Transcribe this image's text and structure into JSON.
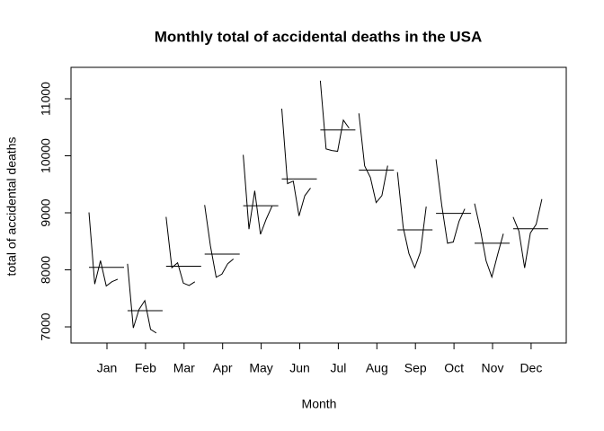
{
  "chart_data": {
    "type": "monthplot",
    "title": "Monthly total of accidental deaths in the USA",
    "xlabel": "Month",
    "ylabel": "total of accidental deaths",
    "categories": [
      "Jan",
      "Feb",
      "Mar",
      "Apr",
      "May",
      "Jun",
      "Jul",
      "Aug",
      "Sep",
      "Oct",
      "Nov",
      "Dec"
    ],
    "values": [
      [
        9007,
        7750,
        8162,
        7717,
        7792,
        7836
      ],
      [
        8106,
        6981,
        7306,
        7461,
        6957,
        6892
      ],
      [
        8928,
        8038,
        8124,
        7767,
        7726,
        7791
      ],
      [
        9137,
        8422,
        7870,
        7925,
        8106,
        8192
      ],
      [
        10017,
        8714,
        9387,
        8623,
        8890,
        9115
      ],
      [
        10826,
        9512,
        9556,
        8945,
        9299,
        9434
      ],
      [
        11317,
        10120,
        10093,
        10078,
        10625,
        10484
      ],
      [
        10744,
        9823,
        9620,
        9179,
        9302,
        9827
      ],
      [
        9713,
        8743,
        8285,
        8037,
        8314,
        9110
      ],
      [
        9938,
        9129,
        8466,
        8488,
        8850,
        9070
      ],
      [
        9161,
        8710,
        8160,
        7874,
        8265,
        8633
      ],
      [
        8927,
        8680,
        8034,
        8647,
        8796,
        9240
      ]
    ],
    "means": [
      8044,
      7283.8,
      8062.3,
      8275.3,
      9124.3,
      9595.3,
      10452.8,
      9749.2,
      8700.3,
      8990.2,
      8467.2,
      8720.7
    ],
    "color": "#000000",
    "ylim": [
      6717,
      11551
    ],
    "yticks": [
      7000,
      8000,
      9000,
      10000,
      11000
    ]
  }
}
